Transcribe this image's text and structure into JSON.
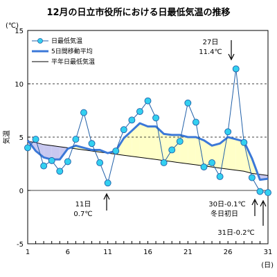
{
  "chart_data": {
    "type": "line",
    "title": "12月の日立市役所における日最低気温の推移",
    "ylabel": "気温",
    "yunit": "(℃)",
    "xunit": "(日)",
    "xlim": [
      1,
      31
    ],
    "ylim": [
      -5,
      15
    ],
    "grid": "horizontal-dashed",
    "legend_position": "top-left",
    "y_ticks": [
      {
        "value": -5,
        "label": "-5"
      },
      {
        "value": 0,
        "label": "0"
      },
      {
        "value": 5,
        "label": "5"
      },
      {
        "value": 10,
        "label": "10"
      },
      {
        "value": 15,
        "label": "15"
      }
    ],
    "x_ticks": [
      {
        "value": 1,
        "label": "1"
      },
      {
        "value": 6,
        "label": "6"
      },
      {
        "value": 11,
        "label": "11"
      },
      {
        "value": 16,
        "label": "16"
      },
      {
        "value": 21,
        "label": "21"
      },
      {
        "value": 26,
        "label": "26"
      },
      {
        "value": 31,
        "label": "31"
      }
    ],
    "x": [
      1,
      2,
      3,
      4,
      5,
      6,
      7,
      8,
      9,
      10,
      11,
      12,
      13,
      14,
      15,
      16,
      17,
      18,
      19,
      20,
      21,
      22,
      23,
      24,
      25,
      26,
      27,
      28,
      29,
      30,
      31
    ],
    "series": [
      {
        "name": "日最低気温",
        "color": "#1f5fa8",
        "marker_color": "#33d0f0",
        "values": [
          4.0,
          4.8,
          2.3,
          2.8,
          1.8,
          2.7,
          4.8,
          7.3,
          4.4,
          2.6,
          0.7,
          3.7,
          5.7,
          6.6,
          7.4,
          8.4,
          6.8,
          2.6,
          3.8,
          4.6,
          8.2,
          6.4,
          2.2,
          2.6,
          1.3,
          5.5,
          11.4,
          4.5,
          1.2,
          -0.1,
          -0.2
        ]
      },
      {
        "name": "5日間移動平均",
        "color": "#3b78d8",
        "values": [
          4.7,
          3.7,
          3.1,
          2.9,
          2.9,
          3.9,
          4.2,
          4.0,
          3.8,
          3.8,
          3.5,
          3.7,
          4.9,
          5.6,
          6.3,
          6.0,
          6.0,
          5.3,
          5.2,
          5.2,
          5.0,
          5.0,
          4.7,
          4.2,
          4.4,
          5.0,
          4.8,
          4.6,
          3.0,
          1.0,
          1.1
        ]
      },
      {
        "name": "平年日最低気温",
        "color": "#000000",
        "values": [
          4.6,
          4.5,
          4.3,
          4.2,
          4.1,
          4.0,
          3.9,
          3.8,
          3.7,
          3.6,
          3.5,
          3.4,
          3.3,
          3.2,
          3.1,
          3.0,
          2.9,
          2.8,
          2.7,
          2.6,
          2.5,
          2.4,
          2.3,
          2.2,
          2.1,
          2.0,
          1.9,
          1.8,
          1.6,
          1.5,
          1.4
        ]
      }
    ],
    "fill_colors": {
      "above": "#ffffc8",
      "below": "#c8c8f0"
    },
    "annotations": [
      {
        "label": "27日",
        "value_label": "11.4℃",
        "x": 27
      },
      {
        "label": "11日",
        "value_label": "0.7℃",
        "x": 11
      },
      {
        "label": "30日-0.1℃",
        "sub_label": "冬日初日",
        "x": 30
      },
      {
        "label": "31日-0.2℃",
        "x": 31
      }
    ]
  }
}
